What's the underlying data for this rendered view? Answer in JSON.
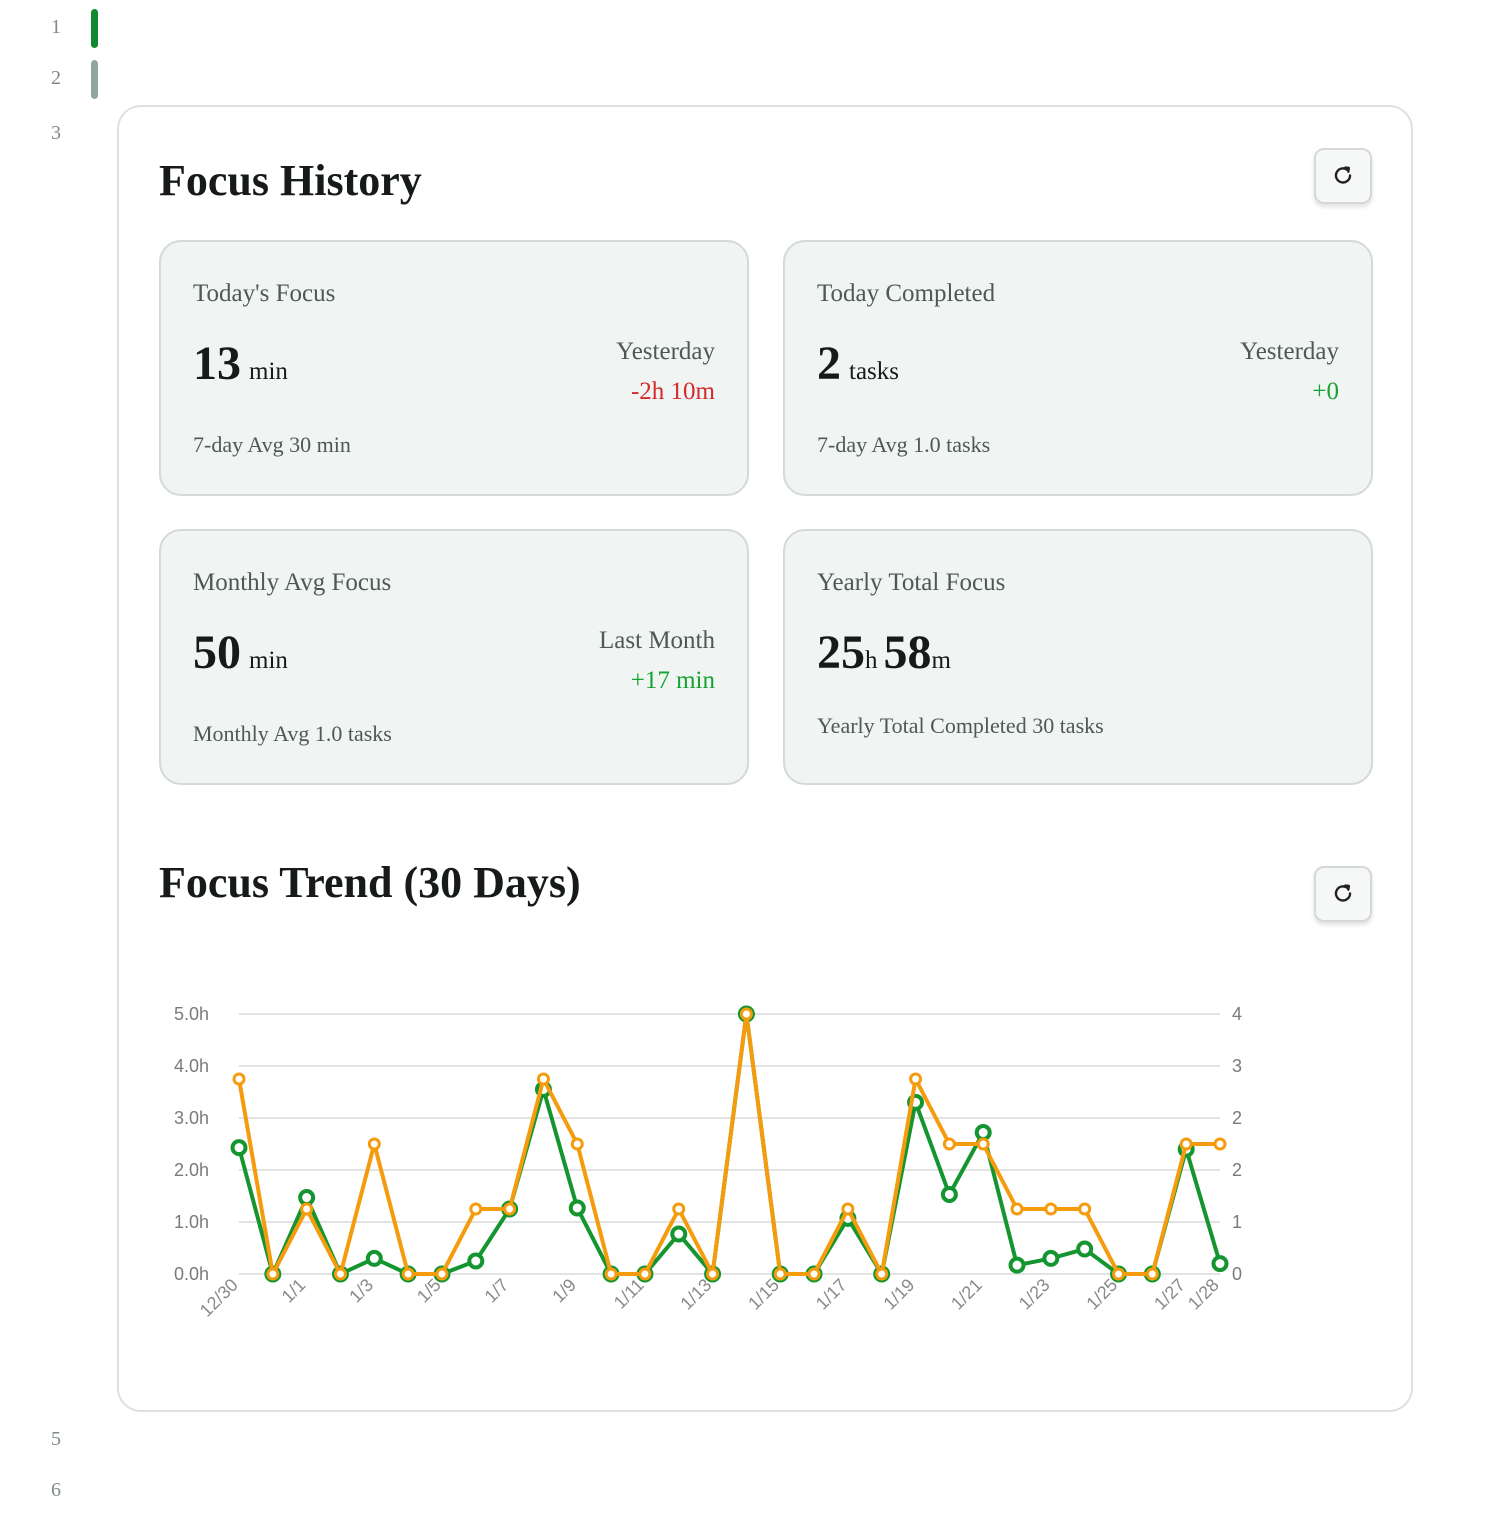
{
  "gutter": {
    "lines": [
      "1",
      "2",
      "3",
      "5",
      "6"
    ]
  },
  "colors": {
    "focus_line": "#15952f",
    "tasks_line": "#f59b0e",
    "accent": "#10892f"
  },
  "history": {
    "title": "Focus History",
    "refresh_icon": "refresh-icon",
    "cards": {
      "today_focus": {
        "title": "Today's Focus",
        "value": "13",
        "unit": "min",
        "compare_label": "Yesterday",
        "compare_value": "-2h 10m",
        "footer": "7-day Avg 30 min"
      },
      "today_completed": {
        "title": "Today Completed",
        "value": "2",
        "unit": "tasks",
        "compare_label": "Yesterday",
        "compare_value": "+0",
        "footer": "7-day Avg 1.0 tasks"
      },
      "monthly_avg": {
        "title": "Monthly Avg Focus",
        "value": "50",
        "unit": "min",
        "compare_label": "Last Month",
        "compare_value": "+17 min",
        "footer": "Monthly Avg 1.0 tasks"
      },
      "yearly_total": {
        "title": "Yearly Total Focus",
        "hours": "25",
        "hours_unit": "h",
        "minutes": "58",
        "minutes_unit": "m",
        "footer": "Yearly Total Completed 30 tasks"
      }
    }
  },
  "trend": {
    "title": "Focus Trend (30 Days)",
    "refresh_icon": "refresh-icon"
  },
  "chart_data": {
    "type": "line",
    "x": [
      "12/30",
      "12/31",
      "1/1",
      "1/2",
      "1/3",
      "1/4",
      "1/5",
      "1/6",
      "1/7",
      "1/8",
      "1/9",
      "1/10",
      "1/11",
      "1/12",
      "1/13",
      "1/14",
      "1/15",
      "1/16",
      "1/17",
      "1/18",
      "1/19",
      "1/20",
      "1/21",
      "1/22",
      "1/23",
      "1/24",
      "1/25",
      "1/26",
      "1/27",
      "1/28"
    ],
    "x_tick_labels": [
      "12/30",
      "1/1",
      "1/3",
      "1/5",
      "1/7",
      "1/9",
      "1/11",
      "1/13",
      "1/15",
      "1/17",
      "1/19",
      "1/21",
      "1/23",
      "1/25",
      "1/27",
      "1/28"
    ],
    "y_left_ticks": [
      "0.0h",
      "1.0h",
      "2.0h",
      "3.0h",
      "4.0h",
      "5.0h"
    ],
    "y_left_range": [
      0,
      5
    ],
    "y_right_ticks": [
      "0",
      "1",
      "2",
      "2",
      "3",
      "4"
    ],
    "y_right_range": [
      0,
      4
    ],
    "grid": true,
    "series": [
      {
        "axis": "left",
        "values": [
          2.43,
          0,
          1.47,
          0,
          0.3,
          0,
          0,
          0.25,
          1.25,
          3.55,
          1.27,
          0,
          0,
          0.77,
          0,
          5.0,
          0,
          0,
          1.07,
          0,
          3.3,
          1.53,
          2.72,
          0.17,
          0.3,
          0.48,
          0,
          0,
          2.4,
          0.2
        ]
      },
      {
        "axis": "right",
        "values": [
          3,
          0,
          1,
          0,
          2,
          0,
          0,
          1,
          1,
          3,
          2,
          0,
          0,
          1,
          0,
          4,
          0,
          0,
          1,
          0,
          3,
          2,
          2,
          1,
          1,
          1,
          0,
          0,
          2,
          2
        ]
      }
    ]
  }
}
